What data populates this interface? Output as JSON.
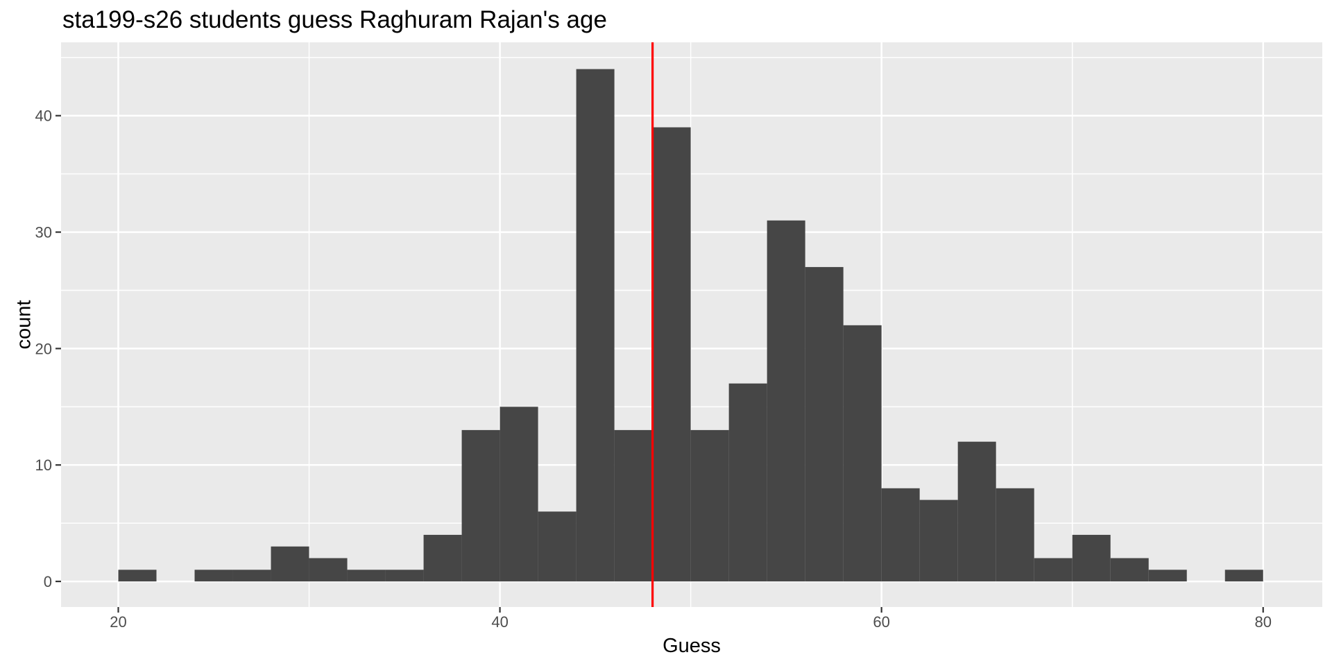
{
  "chart_data": {
    "type": "bar",
    "subtype": "histogram",
    "title": "sta199-s26 students guess Raghuram Rajan's age",
    "xlabel": "Guess",
    "ylabel": "count",
    "bin_width": 2,
    "bins_start": [
      20,
      22,
      24,
      26,
      28,
      30,
      32,
      34,
      36,
      38,
      40,
      42,
      44,
      46,
      48,
      50,
      52,
      54,
      56,
      58,
      60,
      62,
      64,
      66,
      68,
      70,
      72,
      74,
      76,
      78
    ],
    "counts": [
      1,
      0,
      1,
      1,
      3,
      2,
      1,
      1,
      4,
      13,
      15,
      6,
      44,
      13,
      39,
      13,
      17,
      31,
      27,
      22,
      8,
      7,
      12,
      8,
      2,
      4,
      2,
      1,
      0,
      1
    ],
    "vline_x": 48,
    "x_ticks": [
      20,
      40,
      60,
      80
    ],
    "x_minor_ticks": [
      30,
      50,
      70
    ],
    "y_ticks": [
      0,
      10,
      20,
      30,
      40
    ],
    "y_minor_ticks": [
      5,
      15,
      25,
      35,
      45
    ],
    "xlim": [
      17.0,
      83.1
    ],
    "ylim": [
      -2.2,
      46.3
    ],
    "grid": true,
    "legend_position": "none",
    "colors": {
      "bar": "#464646",
      "panel": "#EAEAEA",
      "grid": "#FFFFFF",
      "vline": "#FF0000",
      "tick_label": "#4D4D4D",
      "axis_title": "#000000",
      "tick_mark": "#333333",
      "title_text": "#000000",
      "background": "#FFFFFF"
    }
  }
}
